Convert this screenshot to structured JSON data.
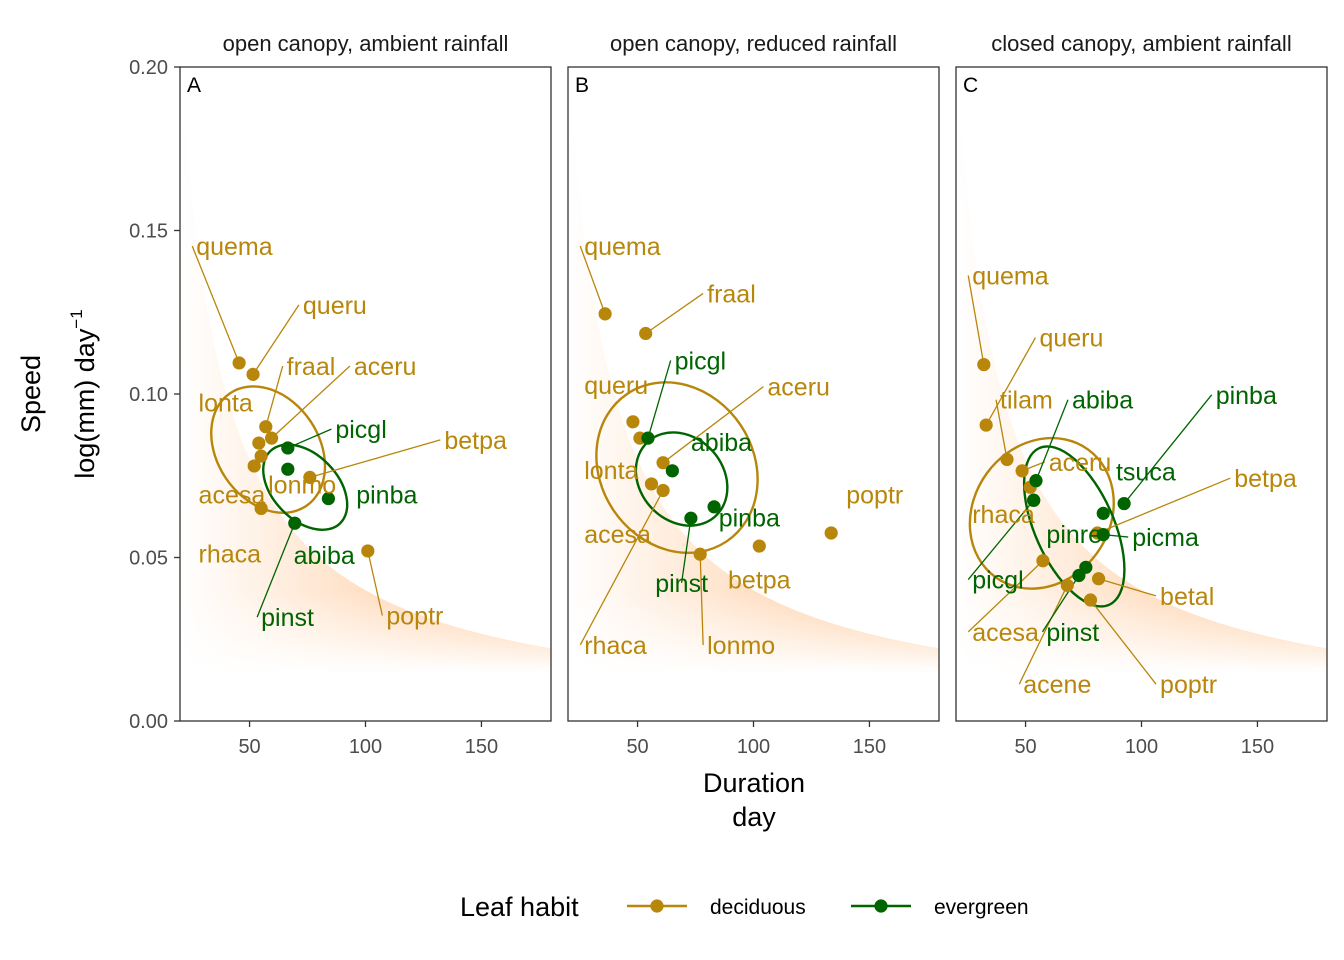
{
  "chart_data": {
    "type": "scatter",
    "x_axis": {
      "title_line1": "Duration",
      "title_line2": "day",
      "range": [
        20,
        180
      ],
      "ticks": [
        50,
        100,
        150
      ]
    },
    "y_axis": {
      "title_line1": "Speed",
      "title_line2": "log(mm) day",
      "title_sup": "−1",
      "range": [
        0,
        0.2
      ],
      "ticks": [
        0.0,
        0.05,
        0.1,
        0.15,
        0.2
      ],
      "tick_labels": [
        "0.00",
        "0.05",
        "0.10",
        "0.15",
        "0.20"
      ]
    },
    "colors": {
      "deciduous": "#B8860B",
      "evergreen": "#006400",
      "background_gradient": "#FFC08A"
    },
    "grid": false,
    "legend": {
      "title": "Leaf habit",
      "placement": "bottom",
      "items": [
        {
          "key": "deciduous",
          "label": "deciduous"
        },
        {
          "key": "evergreen",
          "label": "evergreen"
        }
      ]
    },
    "panels": [
      {
        "tag": "A",
        "title": "open canopy, ambient rainfall",
        "ellipses": [
          {
            "group": "deciduous",
            "cx": 58,
            "cy": 0.083,
            "rx": 22,
            "ry": 0.0065,
            "angle": -34
          },
          {
            "group": "evergreen",
            "cx": 74,
            "cy": 0.0715,
            "rx": 14,
            "ry": 0.0048,
            "angle": -44
          }
        ],
        "points": [
          {
            "name": "quema",
            "group": "deciduous",
            "x": 45.5,
            "y": 0.1095,
            "lx": 27,
            "ly": 0.1425,
            "anchor": "start",
            "leader": true
          },
          {
            "name": "queru",
            "group": "deciduous",
            "x": 51.5,
            "y": 0.106,
            "lx": 73,
            "ly": 0.1245,
            "anchor": "start",
            "leader": true
          },
          {
            "name": "fraal",
            "group": "deciduous",
            "x": 57,
            "y": 0.09,
            "lx": 66,
            "ly": 0.1058,
            "anchor": "start",
            "leader": true
          },
          {
            "name": "aceru",
            "group": "deciduous",
            "x": 59.5,
            "y": 0.0865,
            "lx": 95,
            "ly": 0.1058,
            "anchor": "start",
            "leader": true
          },
          {
            "name": "lonta",
            "group": "deciduous",
            "x": 54,
            "y": 0.085,
            "lx": 28,
            "ly": 0.0947,
            "anchor": "start",
            "leader": false
          },
          {
            "name": "lonmo",
            "group": "deciduous",
            "x": 55,
            "y": 0.081,
            "lx": 58,
            "ly": 0.0695,
            "anchor": "start",
            "leader": false
          },
          {
            "name": "acesa",
            "group": "deciduous",
            "x": 52,
            "y": 0.078,
            "lx": 28,
            "ly": 0.0665,
            "anchor": "start",
            "leader": false
          },
          {
            "name": "betpa",
            "group": "deciduous",
            "x": 76,
            "y": 0.0745,
            "lx": 134,
            "ly": 0.0832,
            "anchor": "start",
            "leader": true
          },
          {
            "name": "rhaca",
            "group": "deciduous",
            "x": 55,
            "y": 0.065,
            "lx": 28,
            "ly": 0.0485,
            "anchor": "start",
            "leader": false
          },
          {
            "name": "poptr",
            "group": "deciduous",
            "x": 101,
            "y": 0.052,
            "lx": 109,
            "ly": 0.0295,
            "anchor": "start",
            "leader": true
          },
          {
            "name": "picgl",
            "group": "evergreen",
            "x": 66.5,
            "y": 0.0835,
            "lx": 87,
            "ly": 0.0865,
            "anchor": "start",
            "leader": true
          },
          {
            "name": "pinba",
            "group": "evergreen",
            "x": 84,
            "y": 0.068,
            "lx": 96,
            "ly": 0.0665,
            "anchor": "start",
            "leader": false
          },
          {
            "name": "abiba",
            "group": "evergreen",
            "x": 66.5,
            "y": 0.077,
            "lx": 69,
            "ly": 0.048,
            "anchor": "start",
            "leader": false
          },
          {
            "name": "pinst",
            "group": "evergreen",
            "x": 69.5,
            "y": 0.0605,
            "lx": 55,
            "ly": 0.029,
            "anchor": "start",
            "leader": true
          }
        ]
      },
      {
        "tag": "B",
        "title": "open canopy, reduced rainfall",
        "ellipses": [
          {
            "group": "deciduous",
            "cx": 67,
            "cy": 0.0775,
            "rx": 33,
            "ry": 0.0085,
            "angle": -34
          },
          {
            "group": "evergreen",
            "cx": 69,
            "cy": 0.074,
            "rx": 18,
            "ry": 0.0048,
            "angle": -42
          }
        ],
        "points": [
          {
            "name": "quema",
            "group": "deciduous",
            "x": 36,
            "y": 0.1245,
            "lx": 27,
            "ly": 0.1425,
            "anchor": "start",
            "leader": true
          },
          {
            "name": "fraal",
            "group": "deciduous",
            "x": 53.5,
            "y": 0.1185,
            "lx": 80,
            "ly": 0.128,
            "anchor": "start",
            "leader": true
          },
          {
            "name": "queru",
            "group": "deciduous",
            "x": 48,
            "y": 0.0915,
            "lx": 27,
            "ly": 0.1,
            "anchor": "start",
            "leader": false
          },
          {
            "name": "aceru",
            "group": "deciduous",
            "x": 61,
            "y": 0.079,
            "lx": 106,
            "ly": 0.0995,
            "anchor": "start",
            "leader": true
          },
          {
            "name": "lonta",
            "group": "deciduous",
            "x": 51,
            "y": 0.0865,
            "lx": 27,
            "ly": 0.074,
            "anchor": "start",
            "leader": false
          },
          {
            "name": "acesa",
            "group": "deciduous",
            "x": 56,
            "y": 0.0725,
            "lx": 27,
            "ly": 0.0545,
            "anchor": "start",
            "leader": false
          },
          {
            "name": "rhaca",
            "group": "deciduous",
            "x": 61,
            "y": 0.0705,
            "lx": 27,
            "ly": 0.0205,
            "anchor": "start",
            "leader": true
          },
          {
            "name": "lonmo",
            "group": "deciduous",
            "x": 77,
            "y": 0.051,
            "lx": 80,
            "ly": 0.0205,
            "anchor": "start",
            "leader": true
          },
          {
            "name": "betpa",
            "group": "deciduous",
            "x": 102.5,
            "y": 0.0535,
            "lx": 102.5,
            "ly": 0.0405,
            "anchor": "middle",
            "leader": false
          },
          {
            "name": "poptr",
            "group": "deciduous",
            "x": 133.5,
            "y": 0.0575,
            "lx": 140,
            "ly": 0.0665,
            "anchor": "start",
            "leader": false
          },
          {
            "name": "picgl",
            "group": "evergreen",
            "x": 54.5,
            "y": 0.0865,
            "lx": 66,
            "ly": 0.1075,
            "anchor": "start",
            "leader": true
          },
          {
            "name": "abiba",
            "group": "evergreen",
            "x": 65,
            "y": 0.0765,
            "lx": 73,
            "ly": 0.0825,
            "anchor": "start",
            "leader": false
          },
          {
            "name": "pinba",
            "group": "evergreen",
            "x": 83,
            "y": 0.0655,
            "lx": 85,
            "ly": 0.0595,
            "anchor": "start",
            "leader": false
          },
          {
            "name": "pinst",
            "group": "evergreen",
            "x": 73,
            "y": 0.062,
            "lx": 69,
            "ly": 0.0395,
            "anchor": "middle",
            "leader": true
          }
        ]
      },
      {
        "tag": "C",
        "title": "closed canopy, ambient rainfall",
        "ellipses": [
          {
            "group": "deciduous",
            "cx": 57,
            "cy": 0.0635,
            "rx": 34,
            "ry": 0.0065,
            "angle": -54
          },
          {
            "group": "evergreen",
            "cx": 71,
            "cy": 0.0595,
            "rx": 17,
            "ry": 0.0082,
            "angle": -24
          }
        ],
        "points": [
          {
            "name": "quema",
            "group": "deciduous",
            "x": 32,
            "y": 0.109,
            "lx": 27,
            "ly": 0.1335,
            "anchor": "start",
            "leader": true
          },
          {
            "name": "queru",
            "group": "deciduous",
            "x": 33,
            "y": 0.0905,
            "lx": 56,
            "ly": 0.1145,
            "anchor": "start",
            "leader": true
          },
          {
            "name": "tilam",
            "group": "deciduous",
            "x": 42,
            "y": 0.08,
            "lx": 39,
            "ly": 0.0955,
            "anchor": "start",
            "leader": true
          },
          {
            "name": "aceru",
            "group": "deciduous",
            "x": 48.5,
            "y": 0.0765,
            "lx": 60,
            "ly": 0.0765,
            "anchor": "start",
            "leader": true
          },
          {
            "name": "rhaca",
            "group": "deciduous",
            "x": 52,
            "y": 0.0715,
            "lx": 27,
            "ly": 0.0605,
            "anchor": "start",
            "leader": false
          },
          {
            "name": "acesa",
            "group": "deciduous",
            "x": 57.5,
            "y": 0.049,
            "lx": 27,
            "ly": 0.0245,
            "anchor": "start",
            "leader": true
          },
          {
            "name": "acene",
            "group": "deciduous",
            "x": 68,
            "y": 0.0415,
            "lx": 49,
            "ly": 0.0085,
            "anchor": "start",
            "leader": true
          },
          {
            "name": "betpa",
            "group": "deciduous",
            "x": 81,
            "y": 0.0575,
            "lx": 140,
            "ly": 0.0715,
            "anchor": "start",
            "leader": true
          },
          {
            "name": "betal",
            "group": "deciduous",
            "x": 81.5,
            "y": 0.0435,
            "lx": 108,
            "ly": 0.0355,
            "anchor": "start",
            "leader": true
          },
          {
            "name": "poptr",
            "group": "deciduous",
            "x": 78,
            "y": 0.037,
            "lx": 108,
            "ly": 0.0085,
            "anchor": "start",
            "leader": true
          },
          {
            "name": "abiba",
            "group": "evergreen",
            "x": 54.5,
            "y": 0.0735,
            "lx": 70,
            "ly": 0.0955,
            "anchor": "start",
            "leader": true
          },
          {
            "name": "pinba",
            "group": "evergreen",
            "x": 92.5,
            "y": 0.0665,
            "lx": 132,
            "ly": 0.097,
            "anchor": "start",
            "leader": true
          },
          {
            "name": "tsuca",
            "group": "evergreen",
            "x": 83.5,
            "y": 0.0635,
            "lx": 89,
            "ly": 0.0735,
            "anchor": "start",
            "leader": false
          },
          {
            "name": "pinre",
            "group": "evergreen",
            "x": 53.5,
            "y": 0.0675,
            "lx": 59,
            "ly": 0.0545,
            "anchor": "start",
            "leader": false
          },
          {
            "name": "picma",
            "group": "evergreen",
            "x": 83.5,
            "y": 0.057,
            "lx": 96,
            "ly": 0.0535,
            "anchor": "start",
            "leader": true
          },
          {
            "name": "picgl",
            "group": "evergreen",
            "x": 53.5,
            "y": 0.0675,
            "lx": 27,
            "ly": 0.0405,
            "anchor": "start",
            "leader": true
          },
          {
            "name": "pinst",
            "group": "evergreen",
            "x": 73,
            "y": 0.0445,
            "lx": 59,
            "ly": 0.0245,
            "anchor": "start",
            "leader": true
          },
          {
            "name": "_evg2",
            "group": "evergreen",
            "x": 76,
            "y": 0.047,
            "lx": null,
            "ly": null,
            "anchor": "start",
            "leader": false,
            "hidden_label": true
          }
        ]
      }
    ]
  }
}
